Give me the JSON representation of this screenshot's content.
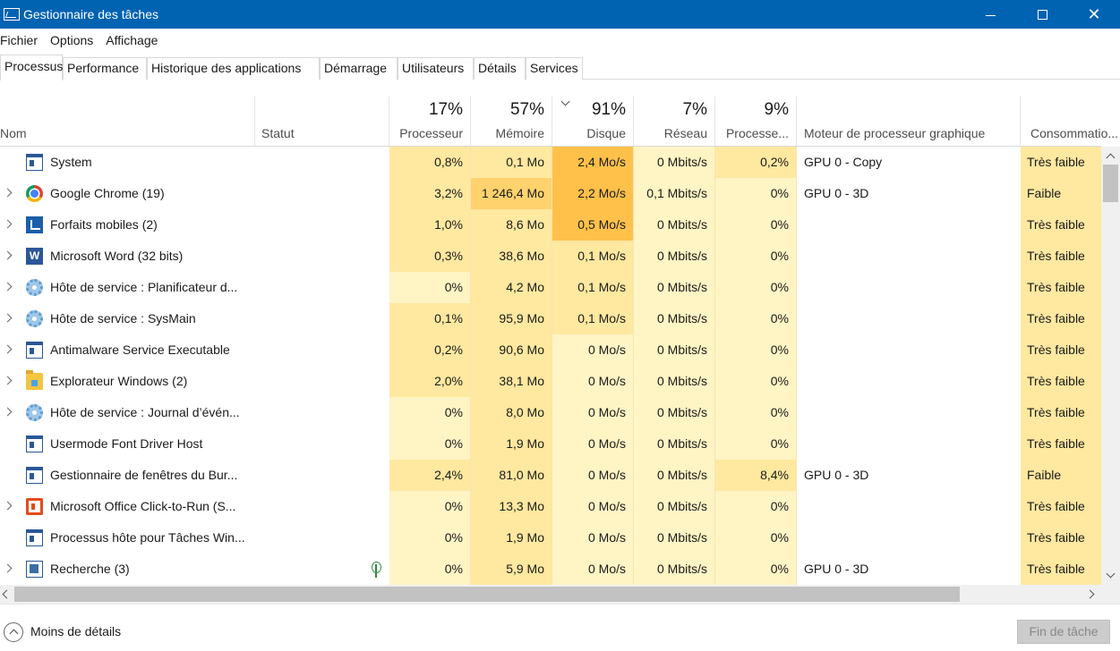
{
  "window": {
    "title": "Gestionnaire des tâches"
  },
  "menu": [
    "Fichier",
    "Options",
    "Affichage"
  ],
  "tabs": [
    "Processus",
    "Performance",
    "Historique des applications",
    "Démarrage",
    "Utilisateurs",
    "Détails",
    "Services"
  ],
  "active_tab": "Processus",
  "columns": {
    "name": {
      "label": "Nom"
    },
    "status": {
      "label": "Statut"
    },
    "cpu": {
      "pct": "17%",
      "label": "Processeur"
    },
    "memory": {
      "pct": "57%",
      "label": "Mémoire"
    },
    "disk": {
      "pct": "91%",
      "label": "Disque"
    },
    "network": {
      "pct": "7%",
      "label": "Réseau"
    },
    "gpu": {
      "pct": "9%",
      "label": "Processe..."
    },
    "gpu_engine": {
      "label": "Moteur de processeur graphique"
    },
    "power": {
      "label": "Consommatio..."
    }
  },
  "rows": [
    {
      "name": "System",
      "icon": "window-icon",
      "expandable": false,
      "cpu": "0,8%",
      "memory": "0,1 Mo",
      "disk": "2,4 Mo/s",
      "network": "0 Mbits/s",
      "gpu": "0,2%",
      "gpu_engine": "GPU 0 - Copy",
      "power": "Très faible"
    },
    {
      "name": "Google Chrome (19)",
      "icon": "chrome-icon",
      "expandable": true,
      "cpu": "3,2%",
      "memory": "1 246,4 Mo",
      "disk": "2,2 Mo/s",
      "network": "0,1 Mbits/s",
      "gpu": "0%",
      "gpu_engine": "GPU 0 - 3D",
      "power": "Faible"
    },
    {
      "name": "Forfaits mobiles (2)",
      "icon": "mobile-plans-icon",
      "expandable": true,
      "cpu": "1,0%",
      "memory": "8,6 Mo",
      "disk": "0,5 Mo/s",
      "network": "0 Mbits/s",
      "gpu": "0%",
      "gpu_engine": "",
      "power": "Très faible"
    },
    {
      "name": "Microsoft Word (32 bits)",
      "icon": "word-icon",
      "expandable": true,
      "cpu": "0,3%",
      "memory": "38,6 Mo",
      "disk": "0,1 Mo/s",
      "network": "0 Mbits/s",
      "gpu": "0%",
      "gpu_engine": "",
      "power": "Très faible"
    },
    {
      "name": "Hôte de service : Planificateur d...",
      "icon": "gear-icon",
      "expandable": true,
      "cpu": "0%",
      "memory": "4,2 Mo",
      "disk": "0,1 Mo/s",
      "network": "0 Mbits/s",
      "gpu": "0%",
      "gpu_engine": "",
      "power": "Très faible"
    },
    {
      "name": "Hôte de service : SysMain",
      "icon": "gear-icon",
      "expandable": true,
      "cpu": "0,1%",
      "memory": "95,9 Mo",
      "disk": "0,1 Mo/s",
      "network": "0 Mbits/s",
      "gpu": "0%",
      "gpu_engine": "",
      "power": "Très faible"
    },
    {
      "name": "Antimalware Service Executable",
      "icon": "window-icon",
      "expandable": true,
      "cpu": "0,2%",
      "memory": "90,6 Mo",
      "disk": "0 Mo/s",
      "network": "0 Mbits/s",
      "gpu": "0%",
      "gpu_engine": "",
      "power": "Très faible"
    },
    {
      "name": "Explorateur Windows (2)",
      "icon": "folder-icon",
      "expandable": true,
      "cpu": "2,0%",
      "memory": "38,1 Mo",
      "disk": "0 Mo/s",
      "network": "0 Mbits/s",
      "gpu": "0%",
      "gpu_engine": "",
      "power": "Très faible"
    },
    {
      "name": "Hôte de service : Journal d’évén...",
      "icon": "gear-icon",
      "expandable": true,
      "cpu": "0%",
      "memory": "8,0 Mo",
      "disk": "0 Mo/s",
      "network": "0 Mbits/s",
      "gpu": "0%",
      "gpu_engine": "",
      "power": "Très faible"
    },
    {
      "name": "Usermode Font Driver Host",
      "icon": "window-icon",
      "expandable": false,
      "cpu": "0%",
      "memory": "1,9 Mo",
      "disk": "0 Mo/s",
      "network": "0 Mbits/s",
      "gpu": "0%",
      "gpu_engine": "",
      "power": "Très faible"
    },
    {
      "name": "Gestionnaire de fenêtres du Bur...",
      "icon": "window-icon",
      "expandable": false,
      "cpu": "2,4%",
      "memory": "81,0 Mo",
      "disk": "0 Mo/s",
      "network": "0 Mbits/s",
      "gpu": "8,4%",
      "gpu_engine": "GPU 0 - 3D",
      "power": "Faible"
    },
    {
      "name": "Microsoft Office Click-to-Run (S...",
      "icon": "office-icon",
      "expandable": true,
      "cpu": "0%",
      "memory": "13,3 Mo",
      "disk": "0 Mo/s",
      "network": "0 Mbits/s",
      "gpu": "0%",
      "gpu_engine": "",
      "power": "Très faible"
    },
    {
      "name": "Processus hôte pour Tâches Win...",
      "icon": "window-icon",
      "expandable": false,
      "cpu": "0%",
      "memory": "1,9 Mo",
      "disk": "0 Mo/s",
      "network": "0 Mbits/s",
      "gpu": "0%",
      "gpu_engine": "",
      "power": "Très faible"
    },
    {
      "name": "Recherche (3)",
      "icon": "search-app-icon",
      "expandable": true,
      "status_icon": "leaf-icon",
      "cpu": "0%",
      "memory": "5,9 Mo",
      "disk": "0 Mo/s",
      "network": "0 Mbits/s",
      "gpu": "0%",
      "gpu_engine": "GPU 0 - 3D",
      "power": "Très faible"
    }
  ],
  "heat_colors": {
    "light": "#fff4c4",
    "medium": "#ffe8a0",
    "strong": "#ffd26e",
    "hot": "#ffc14a"
  },
  "footer": {
    "less_details": "Moins de détails",
    "end_task": "Fin de tâche"
  }
}
